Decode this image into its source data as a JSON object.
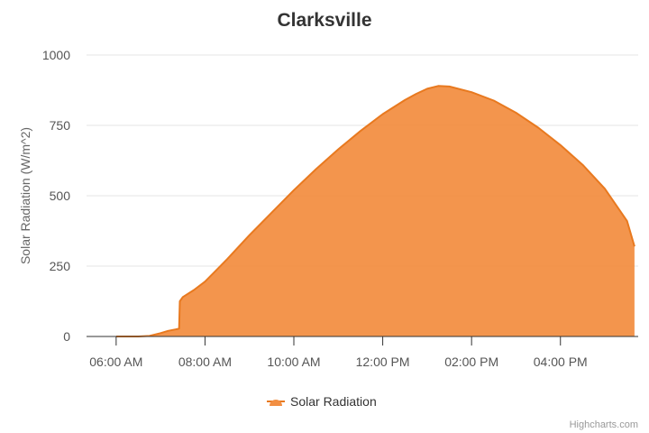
{
  "chart_data": {
    "type": "area",
    "title": "Clarksville",
    "xlabel": "",
    "ylabel": "Solar Radiation (W/m^2)",
    "xlim": [
      "05:20 AM",
      "05:45 PM"
    ],
    "ylim": [
      0,
      1000
    ],
    "y_ticks": [
      0,
      250,
      500,
      750,
      1000
    ],
    "x_ticks": [
      "06:00 AM",
      "08:00 AM",
      "10:00 AM",
      "12:00 PM",
      "02:00 PM",
      "04:00 PM"
    ],
    "grid": "horizontal",
    "legend_position": "bottom-center",
    "series": [
      {
        "name": "Solar Radiation",
        "color": "#f28f43",
        "line_color": "#e8791f",
        "x": [
          "06:00 AM",
          "06:30 AM",
          "06:45 AM",
          "07:00 AM",
          "07:10 AM",
          "07:20 AM",
          "07:25 AM",
          "07:26 AM",
          "07:30 AM",
          "07:45 AM",
          "08:00 AM",
          "08:15 AM",
          "08:30 AM",
          "09:00 AM",
          "09:30 AM",
          "10:00 AM",
          "10:30 AM",
          "11:00 AM",
          "11:30 AM",
          "12:00 PM",
          "12:30 PM",
          "12:45 PM",
          "01:00 PM",
          "01:15 PM",
          "01:30 PM",
          "02:00 PM",
          "02:30 PM",
          "03:00 PM",
          "03:30 PM",
          "04:00 PM",
          "04:30 PM",
          "05:00 PM",
          "05:30 PM",
          "05:40 PM"
        ],
        "values": [
          0,
          0,
          2,
          12,
          20,
          25,
          28,
          125,
          140,
          165,
          195,
          235,
          275,
          360,
          440,
          520,
          595,
          665,
          730,
          790,
          840,
          862,
          880,
          890,
          888,
          868,
          838,
          795,
          742,
          680,
          610,
          525,
          410,
          320
        ]
      }
    ]
  },
  "credits": "Highcharts.com"
}
